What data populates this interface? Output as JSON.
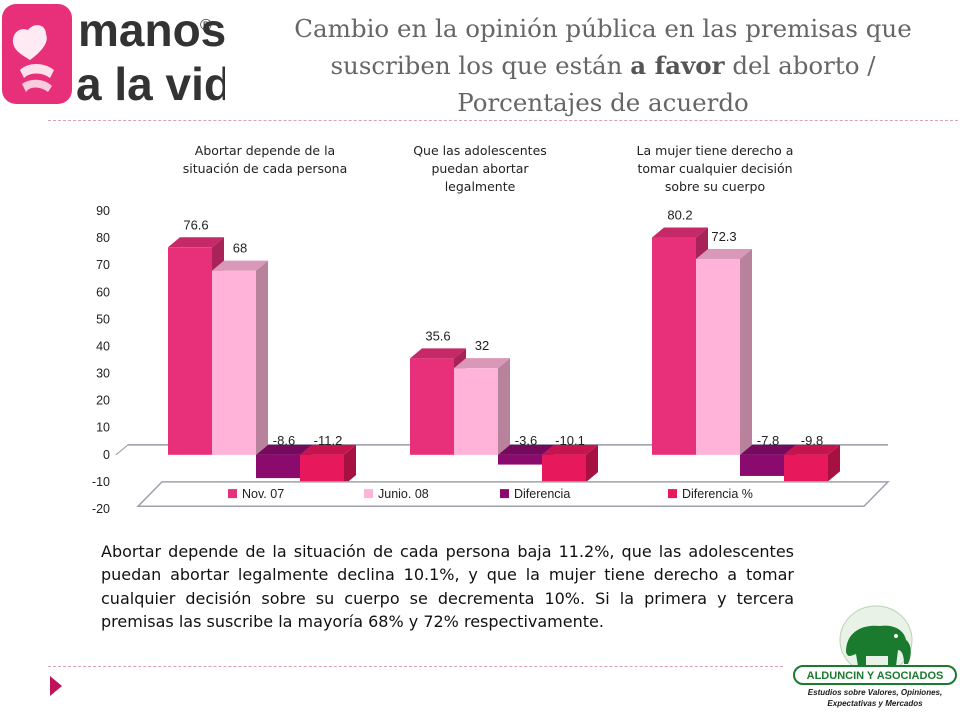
{
  "header": {
    "logo_text": [
      "manos",
      "a la vida"
    ],
    "logo_mark": "®",
    "title_before": "Cambio en la opinión pública en las premisas que suscriben los que están ",
    "title_bold": "a favor",
    "title_after": " del aborto / Porcentajes de acuerdo"
  },
  "chart_data": {
    "type": "bar",
    "categories": [
      "Abortar depende de la situación de cada persona",
      "Que las adolescentes puedan abortar legalmente",
      "La mujer tiene derecho a tomar cualquier decisión sobre su cuerpo"
    ],
    "category_lines": [
      [
        "Abortar depende de la",
        "situación de cada persona"
      ],
      [
        "Que las adolescentes",
        "puedan abortar",
        "legalmente"
      ],
      [
        "La mujer tiene derecho a",
        "tomar cualquier decisión",
        "sobre su cuerpo"
      ]
    ],
    "series": [
      {
        "name": "Nov. 07",
        "values": [
          76.6,
          35.6,
          80.2
        ],
        "labels": [
          "76.6",
          "35.6",
          "80.2"
        ],
        "color": "#e8307a"
      },
      {
        "name": "Junio. 08",
        "values": [
          68,
          32,
          72.3
        ],
        "labels": [
          "68",
          "32",
          "72.3"
        ],
        "color": "#ffb3d9"
      },
      {
        "name": "Diferencia",
        "values": [
          -8.6,
          -3.6,
          -7.8
        ],
        "labels": [
          "-8.6",
          "-3.6",
          "-7.8"
        ],
        "color": "#8b0a6e"
      },
      {
        "name": "Diferencia %",
        "values": [
          -11.2,
          -10.1,
          -9.8
        ],
        "labels": [
          "-11.2",
          "-10.1",
          "-9.8"
        ],
        "color": "#e8185c"
      }
    ],
    "ylim": [
      -20,
      90
    ],
    "yticks": [
      90,
      80,
      70,
      60,
      50,
      40,
      30,
      20,
      10,
      0,
      -10,
      -20
    ],
    "legend": "bottom",
    "grid": false,
    "title": "",
    "xlabel": "",
    "ylabel": ""
  },
  "body": {
    "text": "Abortar depende de la situación de cada persona baja 11.2%, que las adolescentes puedan abortar legalmente declina 10.1%, y que la mujer tiene derecho a tomar cualquier decisión sobre su cuerpo se decrementa 10%. Si la primera y tercera premisas las suscribe la mayoría 68% y 72% respectivamente."
  },
  "footer": {
    "company": "ALDUNCIN Y ASOCIADOS",
    "tagline_1": "Estudios sobre Valores, Opiniones,",
    "tagline_2": "Expectativas y Mercados"
  },
  "colors": {
    "brand_pink": "#e8307a",
    "logo_text": "#333333",
    "nav_arrow": "#c0145a",
    "elephant_green": "#1a7a2e"
  },
  "icons": {
    "logo": "hands-heart-icon",
    "nav": "triangle-right-icon",
    "company": "elephant-icon"
  }
}
